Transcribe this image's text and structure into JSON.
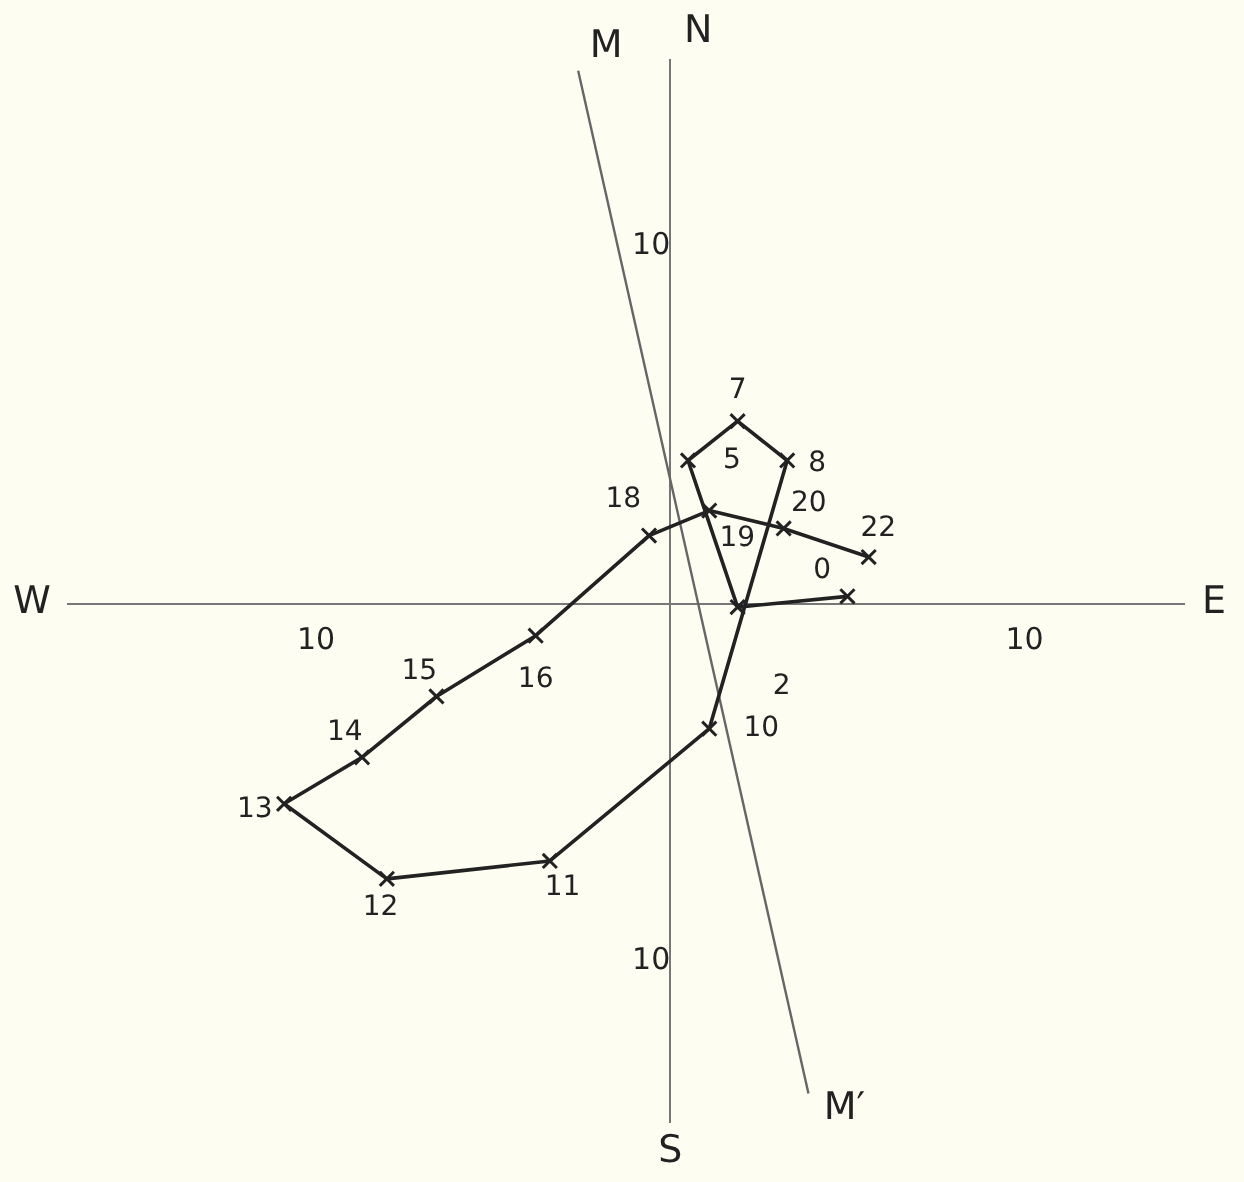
{
  "chart_data": {
    "type": "line",
    "xlim": [
      -17,
      14.5
    ],
    "ylim": [
      -14.5,
      15.2
    ],
    "xticks": [
      {
        "value": -10,
        "label": "10"
      },
      {
        "value": 10,
        "label": "10"
      }
    ],
    "yticks": [
      {
        "value": -10,
        "label": "10"
      },
      {
        "value": 10,
        "label": "10"
      }
    ],
    "grid": false,
    "legend": false,
    "series": [
      {
        "color": "#222222",
        "marker": "cross",
        "x": [
          5.0,
          1.9,
          0.5,
          1.9,
          3.3,
          1.1,
          -3.4,
          -8.0,
          -10.9,
          -8.7,
          -6.6,
          -3.8,
          -0.6,
          1.1,
          3.2,
          5.6
        ],
        "values": [
          0.2,
          -0.1,
          4.0,
          5.1,
          4.0,
          -3.5,
          -7.2,
          -7.7,
          -5.6,
          -4.3,
          -2.6,
          -0.9,
          1.9,
          2.6,
          2.1,
          1.3
        ]
      },
      {
        "color": "#666666",
        "marker": "none",
        "x": [
          -2.6,
          3.9
        ],
        "values": [
          14.9,
          -13.7
        ]
      }
    ],
    "annotations": [
      "M",
      "M′",
      "N",
      "S",
      "E",
      "W",
      {
        "text": "0",
        "x": 5.0,
        "y": 0.2
      },
      {
        "text": "2",
        "x": 1.9,
        "y": -0.1
      },
      {
        "text": "5",
        "x": 0.5,
        "y": 4.0
      },
      {
        "text": "7",
        "x": 1.9,
        "y": 5.1
      },
      {
        "text": "8",
        "x": 3.3,
        "y": 4.0
      },
      {
        "text": "10",
        "x": 1.1,
        "y": -3.5
      },
      {
        "text": "11",
        "x": -3.4,
        "y": -7.2
      },
      {
        "text": "12",
        "x": -8.0,
        "y": -7.7
      },
      {
        "text": "13",
        "x": -10.9,
        "y": -5.6
      },
      {
        "text": "14",
        "x": -8.7,
        "y": -4.3
      },
      {
        "text": "15",
        "x": -6.6,
        "y": -2.6
      },
      {
        "text": "16",
        "x": -3.8,
        "y": -0.9
      },
      {
        "text": "18",
        "x": -0.6,
        "y": 1.9
      },
      {
        "text": "19",
        "x": 1.1,
        "y": 2.6
      },
      {
        "text": "20",
        "x": 3.2,
        "y": 2.1
      },
      {
        "text": "22",
        "x": 5.6,
        "y": 1.3
      }
    ]
  }
}
